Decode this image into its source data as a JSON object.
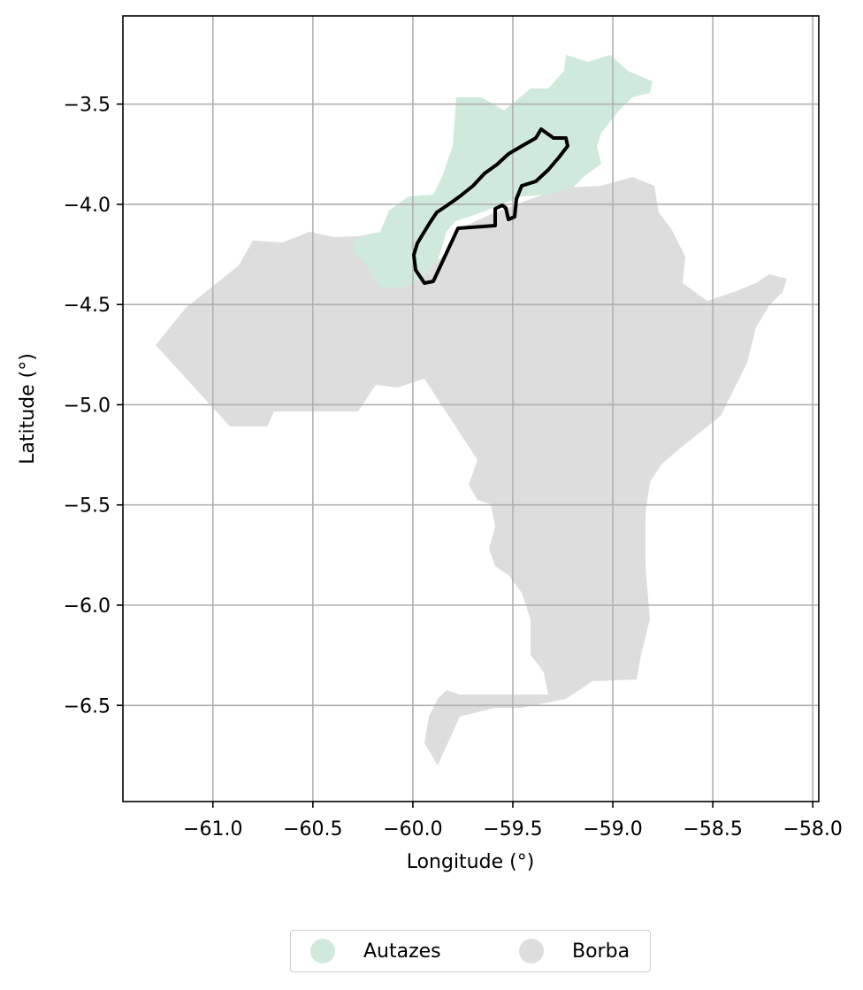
{
  "map": {
    "xlabel": "Longitude (°)",
    "ylabel": "Latitude (°)",
    "x_ticks": [
      "−61.0",
      "−60.5",
      "−60.0",
      "−59.5",
      "−59.0",
      "−58.5",
      "−58.0"
    ],
    "y_ticks": [
      "−3.5",
      "−4.0",
      "−4.5",
      "−5.0",
      "−5.5",
      "−6.0",
      "−6.5"
    ],
    "x_tick_values": [
      -61.0,
      -60.5,
      -60.0,
      -59.5,
      -59.0,
      -58.5,
      -58.0
    ],
    "y_tick_values": [
      -3.5,
      -4.0,
      -4.5,
      -5.0,
      -5.5,
      -6.0,
      -6.5
    ],
    "xlim": [
      -61.45,
      -57.97
    ],
    "ylim": [
      -6.98,
      -3.06
    ],
    "grid": true,
    "regions": [
      {
        "name": "Autazes",
        "color": "#cfeadc"
      },
      {
        "name": "Borba",
        "color": "#dddddd"
      }
    ],
    "outline": {
      "color": "#000000"
    }
  },
  "legend": {
    "placement": "bottom-center",
    "items": [
      {
        "label": "Autazes",
        "color": "#cfeadc"
      },
      {
        "label": "Borba",
        "color": "#dddddd"
      }
    ]
  }
}
